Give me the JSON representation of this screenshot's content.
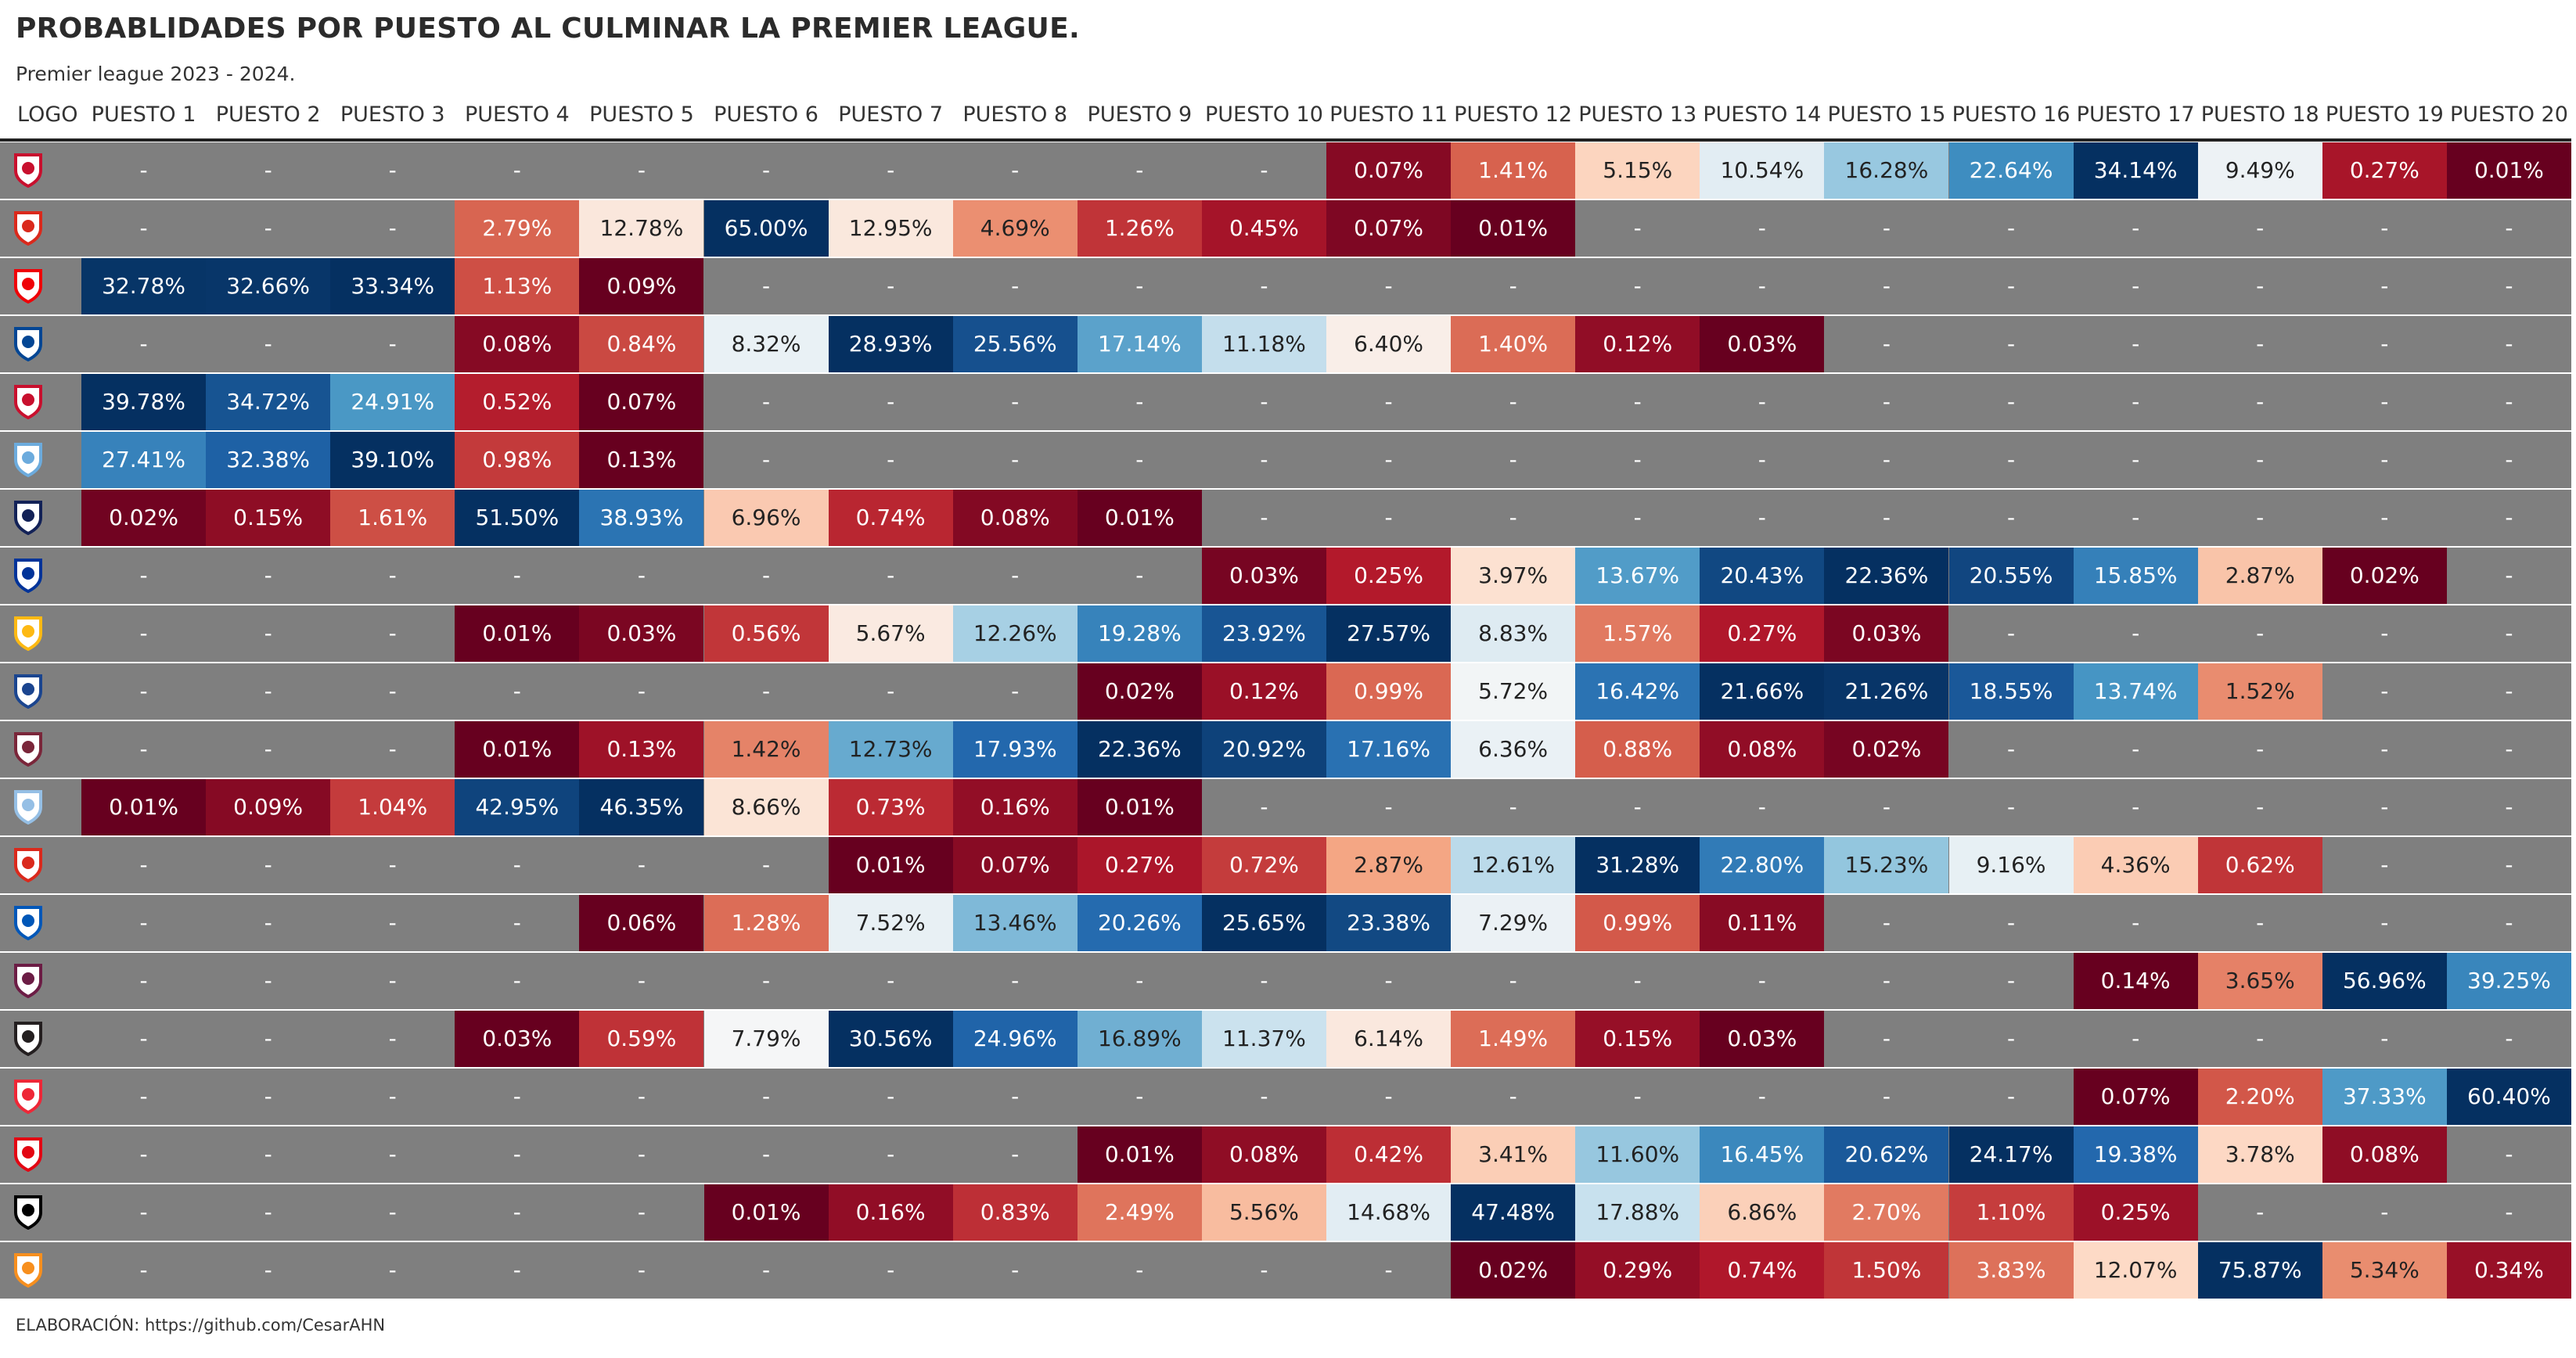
{
  "title": "PROBABLIDADES POR PUESTO AL CULMINAR LA PREMIER LEAGUE.",
  "subtitle": "Premier league 2023 - 2024.",
  "footer": "ELABORACIÓN: https://github.com/CesarAHN",
  "colors": {
    "empty": "#7f7f7f",
    "scale": [
      "#67001f",
      "#b2182b",
      "#d6604d",
      "#f4a582",
      "#fddbc7",
      "#f7f7f7",
      "#d1e5f0",
      "#92c5de",
      "#4393c3",
      "#2166ac",
      "#053061"
    ]
  },
  "chart_data": {
    "type": "table",
    "columns": [
      "LOGO",
      "PUESTO 1",
      "PUESTO 2",
      "PUESTO 3",
      "PUESTO 4",
      "PUESTO 5",
      "PUESTO 6",
      "PUESTO 7",
      "PUESTO 8",
      "PUESTO 9",
      "PUESTO 10",
      "PUESTO 11",
      "PUESTO 12",
      "PUESTO 13",
      "PUESTO 14",
      "PUESTO 15",
      "PUESTO 16",
      "PUESTO 17",
      "PUESTO 18",
      "PUESTO 19",
      "PUESTO 20"
    ],
    "rows": [
      {
        "logo": "nottingham-forest-icon",
        "color": "#c8102e",
        "values": [
          "-",
          "-",
          "-",
          "-",
          "-",
          "-",
          "-",
          "-",
          "-",
          "-",
          "0.07%",
          "1.41%",
          "5.15%",
          "10.54%",
          "16.28%",
          "22.64%",
          "34.14%",
          "9.49%",
          "0.27%",
          "0.01%"
        ]
      },
      {
        "logo": "manchester-united-icon",
        "color": "#da291c",
        "values": [
          "-",
          "-",
          "-",
          "2.79%",
          "12.78%",
          "65.00%",
          "12.95%",
          "4.69%",
          "1.26%",
          "0.45%",
          "0.07%",
          "0.01%",
          "-",
          "-",
          "-",
          "-",
          "-",
          "-",
          "-",
          "-"
        ]
      },
      {
        "logo": "arsenal-icon",
        "color": "#ef0107",
        "values": [
          "32.78%",
          "32.66%",
          "33.34%",
          "1.13%",
          "0.09%",
          "-",
          "-",
          "-",
          "-",
          "-",
          "-",
          "-",
          "-",
          "-",
          "-",
          "-",
          "-",
          "-",
          "-",
          "-"
        ]
      },
      {
        "logo": "chelsea-icon",
        "color": "#034694",
        "values": [
          "-",
          "-",
          "-",
          "0.08%",
          "0.84%",
          "8.32%",
          "28.93%",
          "25.56%",
          "17.14%",
          "11.18%",
          "6.40%",
          "1.40%",
          "0.12%",
          "0.03%",
          "-",
          "-",
          "-",
          "-",
          "-",
          "-"
        ]
      },
      {
        "logo": "liverpool-icon",
        "color": "#c8102e",
        "values": [
          "39.78%",
          "34.72%",
          "24.91%",
          "0.52%",
          "0.07%",
          "-",
          "-",
          "-",
          "-",
          "-",
          "-",
          "-",
          "-",
          "-",
          "-",
          "-",
          "-",
          "-",
          "-",
          "-"
        ]
      },
      {
        "logo": "manchester-city-icon",
        "color": "#6cabdd",
        "values": [
          "27.41%",
          "32.38%",
          "39.10%",
          "0.98%",
          "0.13%",
          "-",
          "-",
          "-",
          "-",
          "-",
          "-",
          "-",
          "-",
          "-",
          "-",
          "-",
          "-",
          "-",
          "-",
          "-"
        ]
      },
      {
        "logo": "tottenham-icon",
        "color": "#132257",
        "values": [
          "0.02%",
          "0.15%",
          "1.61%",
          "51.50%",
          "38.93%",
          "6.96%",
          "0.74%",
          "0.08%",
          "0.01%",
          "-",
          "-",
          "-",
          "-",
          "-",
          "-",
          "-",
          "-",
          "-",
          "-",
          "-"
        ]
      },
      {
        "logo": "everton-icon",
        "color": "#003399",
        "values": [
          "-",
          "-",
          "-",
          "-",
          "-",
          "-",
          "-",
          "-",
          "-",
          "0.03%",
          "0.25%",
          "3.97%",
          "13.67%",
          "20.43%",
          "22.36%",
          "20.55%",
          "15.85%",
          "2.87%",
          "0.02%",
          "-"
        ]
      },
      {
        "logo": "wolves-icon",
        "color": "#fdb913",
        "values": [
          "-",
          "-",
          "-",
          "0.01%",
          "0.03%",
          "0.56%",
          "5.67%",
          "12.26%",
          "19.28%",
          "23.92%",
          "27.57%",
          "8.83%",
          "1.57%",
          "0.27%",
          "0.03%",
          "-",
          "-",
          "-",
          "-",
          "-"
        ]
      },
      {
        "logo": "crystal-palace-icon",
        "color": "#1b458f",
        "values": [
          "-",
          "-",
          "-",
          "-",
          "-",
          "-",
          "-",
          "-",
          "0.02%",
          "0.12%",
          "0.99%",
          "5.72%",
          "16.42%",
          "21.66%",
          "21.26%",
          "18.55%",
          "13.74%",
          "1.52%",
          "-",
          "-"
        ]
      },
      {
        "logo": "west-ham-icon",
        "color": "#7a263a",
        "values": [
          "-",
          "-",
          "-",
          "0.01%",
          "0.13%",
          "1.42%",
          "12.73%",
          "17.93%",
          "22.36%",
          "20.92%",
          "17.16%",
          "6.36%",
          "0.88%",
          "0.08%",
          "0.02%",
          "-",
          "-",
          "-",
          "-",
          "-"
        ]
      },
      {
        "logo": "aston-villa-icon",
        "color": "#95bfe5",
        "values": [
          "0.01%",
          "0.09%",
          "1.04%",
          "42.95%",
          "46.35%",
          "8.66%",
          "0.73%",
          "0.16%",
          "0.01%",
          "-",
          "-",
          "-",
          "-",
          "-",
          "-",
          "-",
          "-",
          "-",
          "-",
          "-"
        ]
      },
      {
        "logo": "bournemouth-icon",
        "color": "#da291c",
        "values": [
          "-",
          "-",
          "-",
          "-",
          "-",
          "-",
          "0.01%",
          "0.07%",
          "0.27%",
          "0.72%",
          "2.87%",
          "12.61%",
          "31.28%",
          "22.80%",
          "15.23%",
          "9.16%",
          "4.36%",
          "0.62%",
          "-",
          "-"
        ]
      },
      {
        "logo": "brighton-icon",
        "color": "#0057b8",
        "values": [
          "-",
          "-",
          "-",
          "-",
          "0.06%",
          "1.28%",
          "7.52%",
          "13.46%",
          "20.26%",
          "25.65%",
          "23.38%",
          "7.29%",
          "0.99%",
          "0.11%",
          "-",
          "-",
          "-",
          "-",
          "-",
          "-"
        ]
      },
      {
        "logo": "burnley-icon",
        "color": "#6c1d45",
        "values": [
          "-",
          "-",
          "-",
          "-",
          "-",
          "-",
          "-",
          "-",
          "-",
          "-",
          "-",
          "-",
          "-",
          "-",
          "-",
          "-",
          "0.14%",
          "3.65%",
          "56.96%",
          "39.25%"
        ]
      },
      {
        "logo": "newcastle-icon",
        "color": "#241f20",
        "values": [
          "-",
          "-",
          "-",
          "0.03%",
          "0.59%",
          "7.79%",
          "30.56%",
          "24.96%",
          "16.89%",
          "11.37%",
          "6.14%",
          "1.49%",
          "0.15%",
          "0.03%",
          "-",
          "-",
          "-",
          "-",
          "-",
          "-"
        ]
      },
      {
        "logo": "sheffield-united-icon",
        "color": "#ee2737",
        "values": [
          "-",
          "-",
          "-",
          "-",
          "-",
          "-",
          "-",
          "-",
          "-",
          "-",
          "-",
          "-",
          "-",
          "-",
          "-",
          "-",
          "0.07%",
          "2.20%",
          "37.33%",
          "60.40%"
        ]
      },
      {
        "logo": "brentford-icon",
        "color": "#e30613",
        "values": [
          "-",
          "-",
          "-",
          "-",
          "-",
          "-",
          "-",
          "-",
          "0.01%",
          "0.08%",
          "0.42%",
          "3.41%",
          "11.60%",
          "16.45%",
          "20.62%",
          "24.17%",
          "19.38%",
          "3.78%",
          "0.08%",
          "-"
        ]
      },
      {
        "logo": "fulham-icon",
        "color": "#000000",
        "values": [
          "-",
          "-",
          "-",
          "-",
          "-",
          "0.01%",
          "0.16%",
          "0.83%",
          "2.49%",
          "5.56%",
          "14.68%",
          "47.48%",
          "17.88%",
          "6.86%",
          "2.70%",
          "1.10%",
          "0.25%",
          "-",
          "-",
          "-"
        ]
      },
      {
        "logo": "luton-town-icon",
        "color": "#f78f1e",
        "values": [
          "-",
          "-",
          "-",
          "-",
          "-",
          "-",
          "-",
          "-",
          "-",
          "-",
          "-",
          "0.02%",
          "0.29%",
          "0.74%",
          "1.50%",
          "3.83%",
          "12.07%",
          "75.87%",
          "5.34%",
          "0.34%"
        ]
      }
    ]
  }
}
